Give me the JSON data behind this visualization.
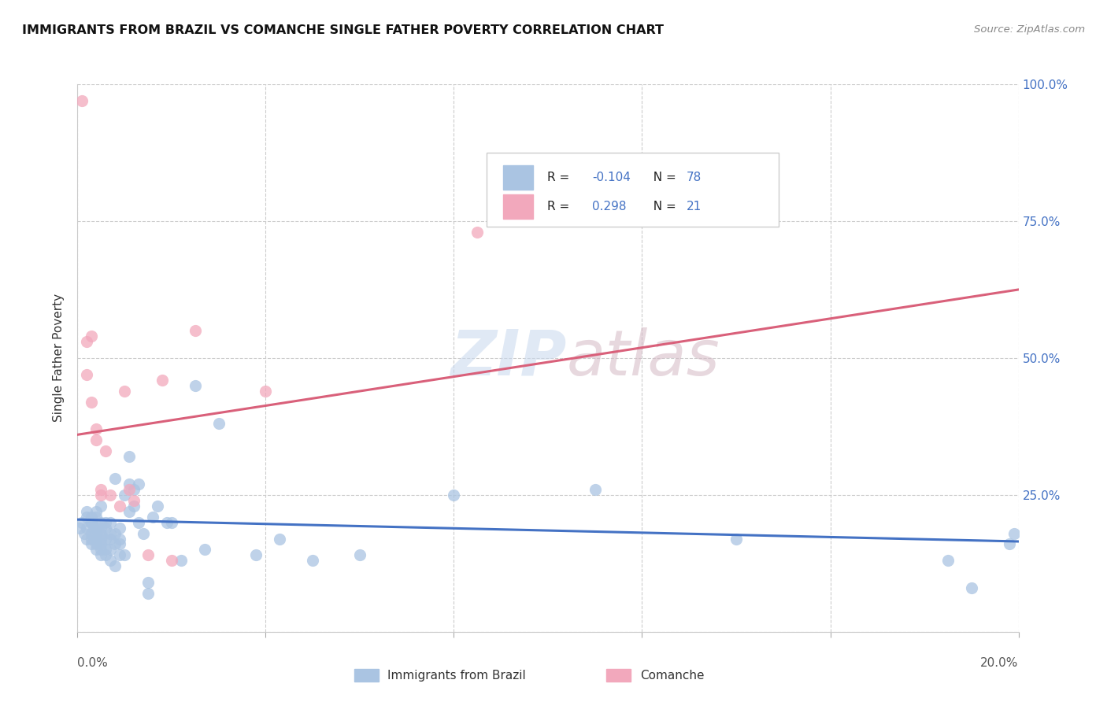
{
  "title": "IMMIGRANTS FROM BRAZIL VS COMANCHE SINGLE FATHER POVERTY CORRELATION CHART",
  "source": "Source: ZipAtlas.com",
  "ylabel": "Single Father Poverty",
  "xlim": [
    0.0,
    0.2
  ],
  "ylim": [
    0.0,
    1.0
  ],
  "brazil_R": -0.104,
  "brazil_N": 78,
  "comanche_R": 0.298,
  "comanche_N": 21,
  "brazil_color": "#aac4e2",
  "comanche_color": "#f2a8bc",
  "brazil_line_color": "#4472c4",
  "comanche_line_color": "#d9607a",
  "legend_brazil_label": "Immigrants from Brazil",
  "legend_comanche_label": "Comanche",
  "brazil_scatter_x": [
    0.0005,
    0.001,
    0.0015,
    0.002,
    0.002,
    0.002,
    0.002,
    0.003,
    0.003,
    0.003,
    0.003,
    0.003,
    0.003,
    0.0035,
    0.004,
    0.004,
    0.004,
    0.004,
    0.004,
    0.004,
    0.004,
    0.005,
    0.005,
    0.005,
    0.005,
    0.005,
    0.005,
    0.005,
    0.005,
    0.006,
    0.006,
    0.006,
    0.006,
    0.006,
    0.007,
    0.007,
    0.007,
    0.007,
    0.007,
    0.008,
    0.008,
    0.008,
    0.008,
    0.009,
    0.009,
    0.009,
    0.009,
    0.01,
    0.01,
    0.011,
    0.011,
    0.011,
    0.012,
    0.012,
    0.013,
    0.013,
    0.014,
    0.015,
    0.015,
    0.016,
    0.017,
    0.019,
    0.02,
    0.022,
    0.025,
    0.027,
    0.03,
    0.038,
    0.043,
    0.05,
    0.06,
    0.08,
    0.11,
    0.14,
    0.185,
    0.19,
    0.198,
    0.199
  ],
  "brazil_scatter_y": [
    0.19,
    0.2,
    0.18,
    0.17,
    0.19,
    0.21,
    0.22,
    0.17,
    0.16,
    0.18,
    0.2,
    0.2,
    0.21,
    0.19,
    0.15,
    0.16,
    0.17,
    0.18,
    0.19,
    0.21,
    0.22,
    0.14,
    0.15,
    0.16,
    0.17,
    0.18,
    0.19,
    0.2,
    0.23,
    0.14,
    0.15,
    0.17,
    0.19,
    0.2,
    0.13,
    0.15,
    0.17,
    0.18,
    0.2,
    0.12,
    0.16,
    0.18,
    0.28,
    0.14,
    0.16,
    0.17,
    0.19,
    0.14,
    0.25,
    0.22,
    0.27,
    0.32,
    0.23,
    0.26,
    0.2,
    0.27,
    0.18,
    0.07,
    0.09,
    0.21,
    0.23,
    0.2,
    0.2,
    0.13,
    0.45,
    0.15,
    0.38,
    0.14,
    0.17,
    0.13,
    0.14,
    0.25,
    0.26,
    0.17,
    0.13,
    0.08,
    0.16,
    0.18
  ],
  "comanche_scatter_x": [
    0.001,
    0.002,
    0.002,
    0.003,
    0.003,
    0.004,
    0.004,
    0.005,
    0.005,
    0.006,
    0.007,
    0.009,
    0.01,
    0.011,
    0.012,
    0.015,
    0.018,
    0.02,
    0.025,
    0.04,
    0.085
  ],
  "comanche_scatter_y": [
    0.97,
    0.53,
    0.47,
    0.54,
    0.42,
    0.37,
    0.35,
    0.26,
    0.25,
    0.33,
    0.25,
    0.23,
    0.44,
    0.26,
    0.24,
    0.14,
    0.46,
    0.13,
    0.55,
    0.44,
    0.73
  ],
  "brazil_trend_x": [
    0.0,
    0.2
  ],
  "brazil_trend_y": [
    0.205,
    0.165
  ],
  "comanche_trend_x": [
    0.0,
    0.2
  ],
  "comanche_trend_y": [
    0.36,
    0.625
  ]
}
